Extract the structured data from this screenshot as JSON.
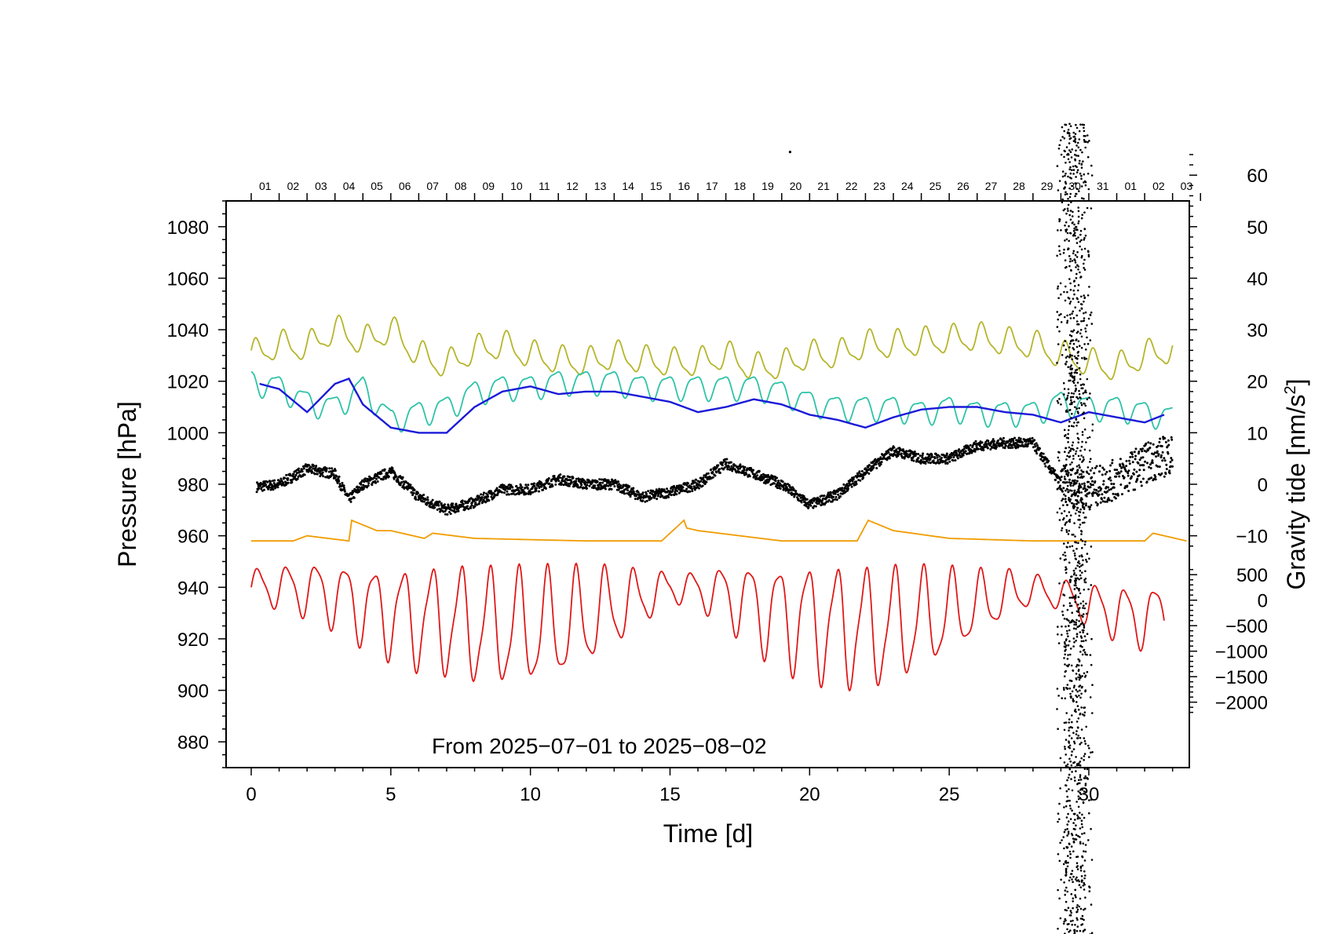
{
  "chart_data": {
    "type": "line",
    "caption": "From 2025−07−01 to 2025−08−02",
    "x_axis": {
      "label": "Time [d]",
      "range": [
        -0.9,
        33.6
      ],
      "ticks": [
        0,
        5,
        10,
        15,
        20,
        25,
        30
      ],
      "tick_labels": [
        "0",
        "5",
        "10",
        "15",
        "20",
        "25",
        "30"
      ]
    },
    "top_axis": {
      "start_day": 0,
      "labels": [
        "01",
        "02",
        "03",
        "04",
        "05",
        "06",
        "07",
        "08",
        "09",
        "10",
        "11",
        "12",
        "13",
        "14",
        "15",
        "16",
        "17",
        "18",
        "19",
        "20",
        "21",
        "22",
        "23",
        "24",
        "25",
        "26",
        "27",
        "28",
        "29",
        "30",
        "31",
        "01",
        "02",
        "03"
      ]
    },
    "left_axis": {
      "label": "Pressure [hPa]",
      "range": [
        870,
        1090
      ],
      "ticks": [
        880,
        900,
        920,
        940,
        960,
        980,
        1000,
        1020,
        1040,
        1060,
        1080
      ],
      "tick_labels": [
        "880",
        "900",
        "920",
        "940",
        "960",
        "980",
        "1000",
        "1020",
        "1040",
        "1060",
        "1080"
      ]
    },
    "right_axis_upper": {
      "label": "Gravity tide [nm/s²]",
      "ticks": [
        -10,
        0,
        10,
        20,
        30,
        40,
        50,
        60
      ],
      "tick_labels": [
        "−10",
        "0",
        "10",
        "20",
        "30",
        "40",
        "50",
        "60"
      ],
      "value_to_pressure": {
        "slope": 2,
        "offset": 980
      }
    },
    "right_axis_lower": {
      "ticks": [
        -2000,
        -1500,
        -1000,
        -500,
        0,
        500
      ],
      "tick_labels": [
        "−2000",
        "−1500",
        "−1000",
        "−500",
        "0",
        "500"
      ],
      "value_to_pressure": {
        "slope": 0.0198,
        "offset": 935
      }
    },
    "series": [
      {
        "name": "olive",
        "color": "#b5b52a",
        "kind": "line",
        "x": [
          0,
          1,
          2,
          3,
          4,
          5,
          6,
          7,
          8,
          9,
          10,
          11,
          12,
          13,
          14,
          15,
          16,
          17,
          18,
          19,
          20,
          21,
          22,
          23,
          24,
          25,
          26,
          27,
          28,
          29,
          30,
          31,
          32,
          33
        ],
        "y": [
          1030,
          1034,
          1033,
          1040,
          1035,
          1040,
          1030,
          1026,
          1032,
          1034,
          1030,
          1028,
          1027,
          1030,
          1028,
          1027,
          1027,
          1030,
          1025,
          1026,
          1030,
          1030,
          1034,
          1034,
          1035,
          1036,
          1037,
          1035,
          1034,
          1030,
          1027,
          1025,
          1030,
          1032
        ],
        "daily_amplitude": 10
      },
      {
        "name": "teal",
        "color": "#2ec3a8",
        "kind": "line",
        "x": [
          0,
          1,
          2,
          3,
          4,
          5,
          6,
          7,
          8,
          9,
          10,
          11,
          12,
          13,
          14,
          15,
          16,
          17,
          18,
          19,
          20,
          21,
          22,
          23,
          24,
          25,
          26,
          27,
          28,
          29,
          30,
          31,
          32,
          33
        ],
        "y": [
          1020,
          1018,
          1012,
          1010,
          1018,
          1005,
          1008,
          1010,
          1016,
          1018,
          1018,
          1020,
          1020,
          1020,
          1018,
          1018,
          1018,
          1018,
          1018,
          1016,
          1012,
          1010,
          1010,
          1010,
          1008,
          1010,
          1008,
          1008,
          1008,
          1012,
          1010,
          1010,
          1008,
          1006
        ],
        "daily_amplitude": 9
      },
      {
        "name": "blue",
        "color": "#1a1ad8",
        "kind": "line",
        "x": [
          0.3,
          1,
          2,
          3,
          3.5,
          4,
          5,
          6,
          7,
          8,
          9,
          10,
          11,
          12,
          13,
          14,
          15,
          16,
          17,
          18,
          19,
          20,
          21,
          22,
          23,
          24,
          25,
          26,
          27,
          28,
          29,
          30,
          31,
          32,
          32.7
        ],
        "y": [
          1019,
          1017,
          1008,
          1019,
          1021,
          1011,
          1002,
          1000,
          1000,
          1010,
          1016,
          1018,
          1015,
          1016,
          1016,
          1014,
          1012,
          1008,
          1010,
          1013,
          1011,
          1007,
          1005,
          1002,
          1006,
          1009,
          1010,
          1010,
          1008,
          1007,
          1004,
          1008,
          1006,
          1004,
          1007
        ]
      },
      {
        "name": "black",
        "color": "#000000",
        "kind": "dots",
        "x": [
          0.2,
          1,
          2,
          3,
          3.5,
          4,
          5,
          6,
          7,
          8,
          9,
          10,
          11,
          12,
          13,
          14,
          15,
          16,
          17,
          18,
          19,
          20,
          21,
          22,
          23,
          24,
          25,
          26,
          27,
          28,
          29,
          30,
          31,
          32,
          33
        ],
        "y": [
          979,
          980,
          986,
          984,
          974,
          980,
          985,
          975,
          970,
          973,
          978,
          978,
          982,
          980,
          980,
          975,
          977,
          980,
          988,
          984,
          980,
          972,
          976,
          985,
          993,
          990,
          990,
          995,
          996,
          996,
          980,
          978,
          982,
          988,
          992
        ]
      },
      {
        "name": "orange",
        "color": "#f09c00",
        "kind": "line",
        "x": [
          0,
          1.5,
          2,
          3.5,
          3.6,
          4.5,
          5,
          6.2,
          6.5,
          8,
          12,
          14.7,
          15.5,
          15.6,
          16,
          19,
          21,
          21.7,
          22.1,
          23,
          25,
          28,
          30,
          32,
          32.3,
          33.5
        ],
        "y": [
          958,
          958,
          960,
          958,
          966,
          962,
          962,
          959,
          961,
          959,
          958,
          958,
          966,
          963,
          962,
          958,
          958,
          958,
          966,
          962,
          959,
          958,
          958,
          958,
          961,
          958
        ]
      },
      {
        "name": "red",
        "color": "#e01818",
        "kind": "line",
        "x": [
          0,
          1,
          2,
          3,
          4,
          5,
          6,
          7,
          8,
          9,
          10,
          11,
          12,
          13,
          14,
          15,
          16,
          17,
          18,
          19,
          20,
          21,
          22,
          23,
          24,
          25,
          26,
          27,
          28,
          29,
          30,
          31,
          32,
          32.7
        ],
        "y": [
          940,
          940,
          939,
          937,
          933,
          930,
          928,
          927,
          925,
          924,
          924,
          925,
          928,
          932,
          936,
          940,
          939,
          937,
          933,
          929,
          927,
          925,
          924,
          925,
          927,
          930,
          933,
          937,
          939,
          937,
          933,
          930,
          928,
          931
        ],
        "daily_amplitude": [
          12,
          14,
          18,
          22,
          26,
          30,
          34,
          36,
          38,
          38,
          38,
          36,
          32,
          26,
          18,
          10,
          12,
          20,
          28,
          34,
          38,
          40,
          40,
          38,
          34,
          28,
          22,
          16,
          10,
          10,
          14,
          18,
          20,
          18
        ]
      }
    ],
    "noise_column": {
      "color": "#000000",
      "x_center": 29.5,
      "x_spread": 0.8,
      "y_range": [
        790,
        1120
      ]
    },
    "outlier_points": [
      {
        "x": 19.3,
        "y": 1109
      }
    ]
  }
}
